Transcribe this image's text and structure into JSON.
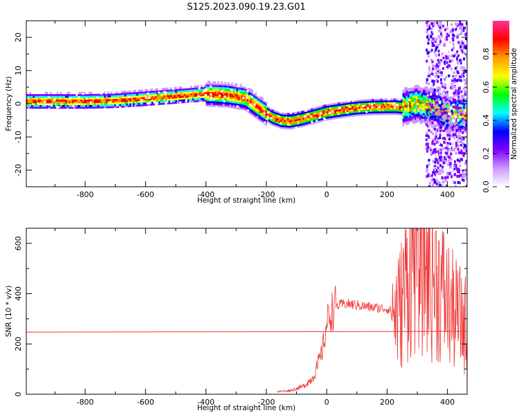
{
  "figure": {
    "title": "S125.2023.090.19.23.G01"
  },
  "chart_data": [
    {
      "type": "heatmap",
      "xlabel": "Height of straight line (km)",
      "ylabel": "Frequency (Hz)",
      "xlim": [
        -995,
        465
      ],
      "ylim": [
        -25,
        25
      ],
      "xticks": [
        -800,
        -600,
        -400,
        -200,
        0,
        200,
        400
      ],
      "yticks": [
        -20,
        -10,
        0,
        10,
        20
      ],
      "ridge": {
        "x": [
          -995,
          -900,
          -800,
          -700,
          -600,
          -500,
          -400,
          -330,
          -270,
          -220,
          -180,
          -150,
          -120,
          -80,
          -40,
          0,
          50,
          100,
          150,
          200,
          230,
          250,
          270,
          300,
          350,
          400,
          415
        ],
        "freq_hz": [
          0.8,
          0.8,
          0.8,
          1.0,
          1.6,
          2.3,
          3.0,
          2.7,
          1.8,
          -1.5,
          -4.0,
          -5.0,
          -5.2,
          -4.5,
          -3.5,
          -2.5,
          -1.8,
          -1.2,
          -0.9,
          -0.8,
          -0.8,
          -1.0,
          -0.5,
          0.0,
          -0.8,
          -3.0,
          -3.0
        ]
      },
      "colorbar": {
        "label": "Normalized spectral amplitude",
        "ticks": [
          "0.0",
          "0.2",
          "0.4",
          "0.6",
          "0.8"
        ],
        "range": [
          0,
          1
        ],
        "colors": [
          "#ffffff",
          "#cc99ff",
          "#8000ff",
          "#0000ff",
          "#00ffff",
          "#00ff00",
          "#ffff00",
          "#ff9900",
          "#ff0000",
          "#ff3399"
        ]
      }
    },
    {
      "type": "line",
      "xlabel": "Height of straight line (km)",
      "ylabel": "SNR (10 * v/v)",
      "xlim": [
        -995,
        465
      ],
      "ylim": [
        0,
        660
      ],
      "xticks": [
        -800,
        -600,
        -400,
        -200,
        0,
        200,
        400
      ],
      "yticks": [
        0,
        200,
        400,
        600
      ],
      "series": [
        {
          "color": "#ee3333",
          "x": [
            -995,
            465
          ],
          "y": [
            247,
            250
          ]
        },
        {
          "color": "#ee3333",
          "x": [
            -165,
            -120,
            -80,
            -50,
            -30,
            -15,
            -5,
            0,
            10,
            30,
            60,
            100,
            150,
            200,
            215,
            240,
            270,
            300,
            330,
            370,
            410,
            440,
            465
          ],
          "y": [
            10,
            15,
            30,
            60,
            110,
            170,
            240,
            280,
            320,
            350,
            360,
            355,
            345,
            340,
            330,
            330,
            480,
            600,
            520,
            440,
            340,
            300,
            270
          ]
        }
      ]
    }
  ]
}
